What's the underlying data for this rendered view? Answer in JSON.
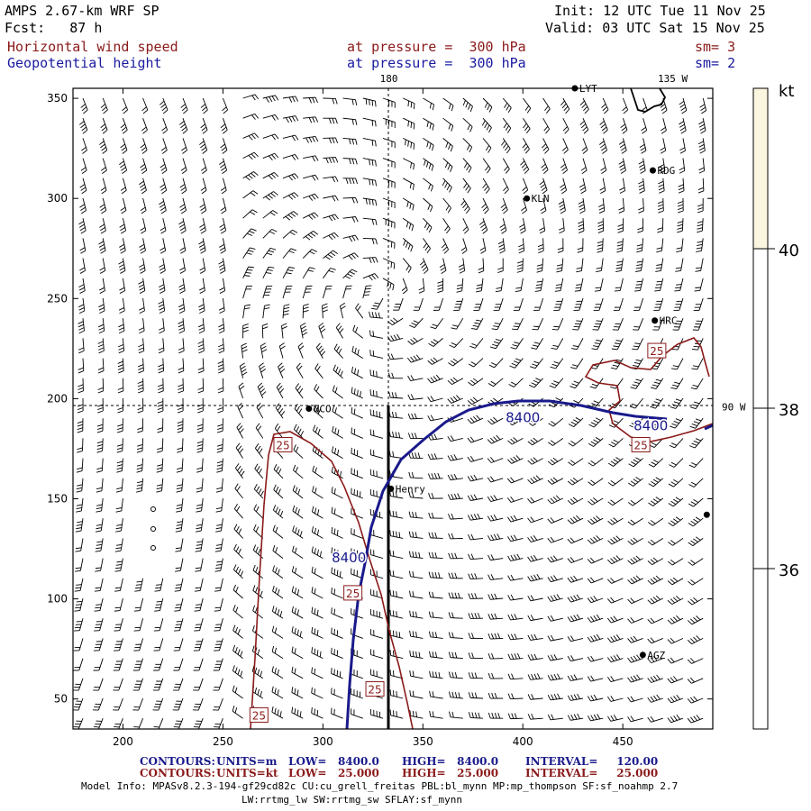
{
  "header": {
    "model_title": "AMPS 2.67-km WRF SP",
    "forecast": "Fcst:   87 h",
    "init": "Init: 12 UTC Tue 11 Nov 25",
    "valid": "Valid: 03 UTC Sat 15 Nov 25",
    "field1_name": "Horizontal wind speed",
    "field1_level": "at pressure =  300 hPa",
    "field1_sm": "sm= 3",
    "field2_name": "Geopotential height",
    "field2_level": "at pressure =  300 hPa",
    "field2_sm": "sm= 2"
  },
  "colors": {
    "height_contour": "#1a1a8c",
    "speed_contour": "#8b1a1a",
    "coast": "#000000",
    "colorbar_fill": "#fbf6df"
  },
  "map": {
    "x_ticks": [
      "200",
      "250",
      "300",
      "350",
      "400",
      "450"
    ],
    "y_ticks": [
      "350",
      "300",
      "250",
      "200",
      "150",
      "100",
      "50"
    ],
    "x_range": [
      175,
      495
    ],
    "y_range": [
      35,
      355
    ],
    "meridian_labels": [
      {
        "text": "180",
        "x": 333
      },
      {
        "text": "135 W",
        "x": 475
      }
    ],
    "parallel_label": {
      "text": "90 W",
      "y": 196
    },
    "stations": [
      {
        "name": "LYT",
        "x": 426,
        "y": 355
      },
      {
        "name": "RDG",
        "x": 465,
        "y": 314
      },
      {
        "name": "KLN",
        "x": 402,
        "y": 300
      },
      {
        "name": "HRC",
        "x": 466,
        "y": 239
      },
      {
        "name": "NCO",
        "x": 293,
        "y": 195
      },
      {
        "name": "Henry",
        "x": 334,
        "y": 155
      },
      {
        "name": "AGZ",
        "x": 460,
        "y": 72
      },
      {
        "name": "",
        "x": 492,
        "y": 142
      }
    ],
    "height_contour_labels": [
      {
        "text": "8400",
        "x": 400,
        "y": 191
      },
      {
        "text": "8400",
        "x": 464,
        "y": 187
      },
      {
        "text": "8400",
        "x": 313,
        "y": 121
      }
    ],
    "speed_contour_labels": [
      {
        "text": "25",
        "x": 280,
        "y": 177
      },
      {
        "text": "25",
        "x": 315,
        "y": 103
      },
      {
        "text": "25",
        "x": 326,
        "y": 55
      },
      {
        "text": "25",
        "x": 268,
        "y": 42
      },
      {
        "text": "25",
        "x": 459,
        "y": 177
      },
      {
        "text": "25",
        "x": 467,
        "y": 224
      }
    ]
  },
  "colorbar": {
    "unit": "kt",
    "ticks": [
      "40",
      "38",
      "36"
    ],
    "fill_above": 40
  },
  "footer": {
    "c1_label": "CONTOURS:",
    "c1_units": "UNITS=m",
    "c1_low": "LOW=   8400.0",
    "c1_high": "HIGH=   8400.0",
    "c1_interval": "INTERVAL=     120.00",
    "c2_label": "CONTOURS:",
    "c2_units": "UNITS=kt",
    "c2_low": "LOW=   25.000",
    "c2_high": "HIGH=   25.000",
    "c2_interval": "INTERVAL=     25.000",
    "model_info_1": "Model Info: MPASv8.2.3-194-gf29cd82c CU:cu_grell_freitas PBL:bl_mynn MP:mp_thompson SF:sf_noahmp 2.7",
    "model_info_2": "LW:rrtmg_lw SW:rrtmg_sw SFLAY:sf_mynn"
  }
}
